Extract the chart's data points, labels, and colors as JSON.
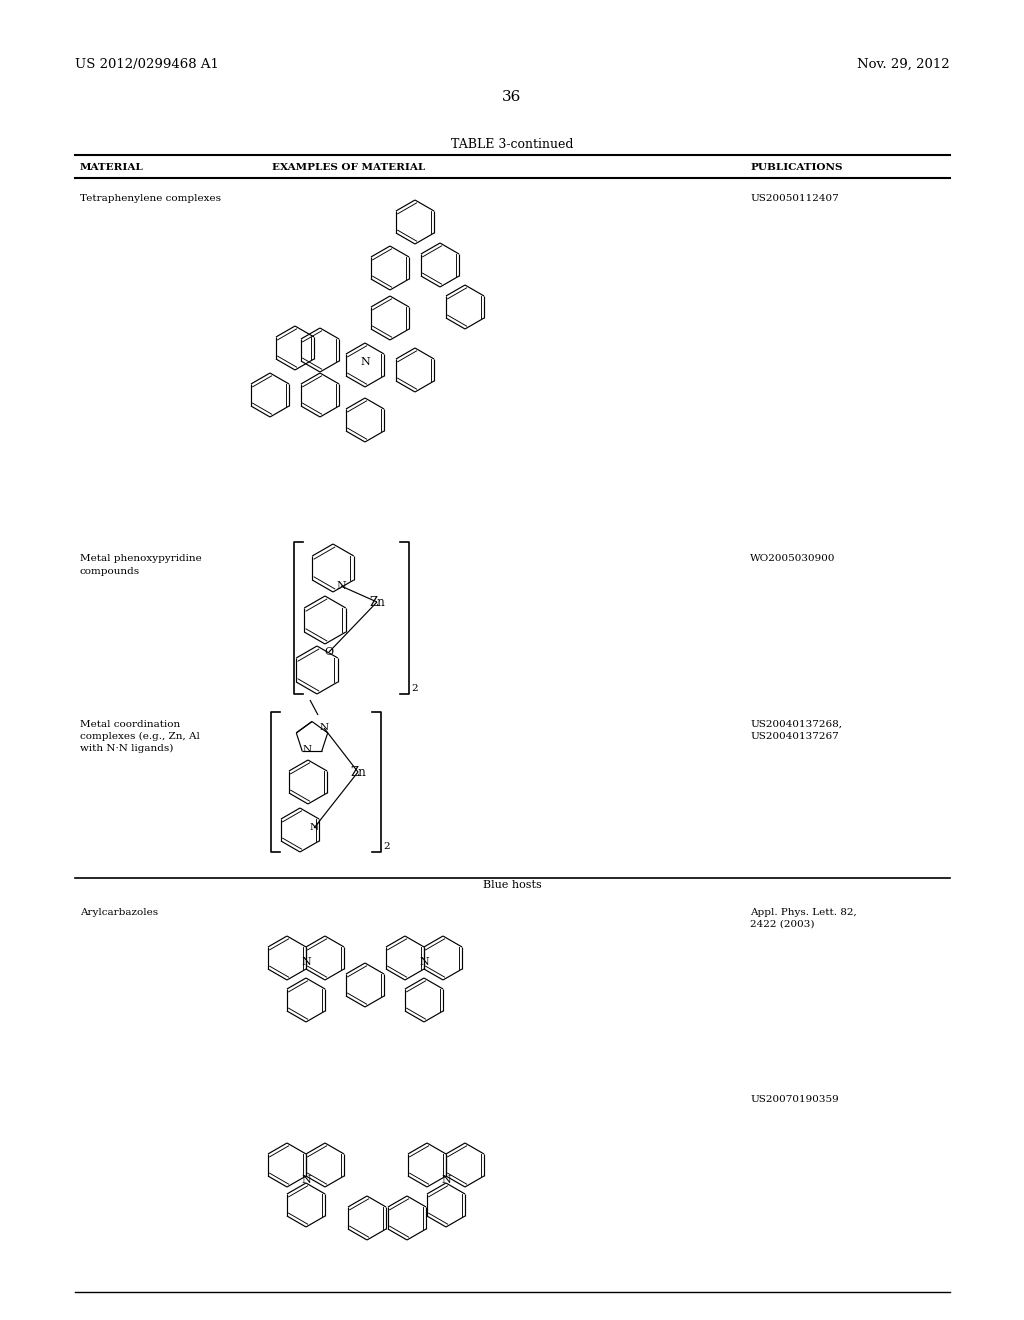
{
  "bg_color": "#ffffff",
  "header_left": "US 2012/0299468 A1",
  "header_right": "Nov. 29, 2012",
  "page_number": "36",
  "table_title": "TABLE 3-continued",
  "col1_header": "MATERIAL",
  "col2_header": "EXAMPLES OF MATERIAL",
  "col3_header": "PUBLICATIONS",
  "row1_material": "Tetraphenylene complexes",
  "row1_pub": "US20050112407",
  "row2_material": "Metal phenoxypyridine\ncompounds",
  "row2_pub": "WO2005030900",
  "row3_material": "Metal coordination\ncomplexes (e.g., Zn, Al\nwith N·N ligands)",
  "row3_pub": "US20040137268,\nUS20040137267",
  "blue_hosts": "Blue hosts",
  "row4_material": "Arylcarbazoles",
  "row4_pub1": "Appl. Phys. Lett. 82,\n2422 (2003)",
  "row4_pub2": "US20070190359"
}
